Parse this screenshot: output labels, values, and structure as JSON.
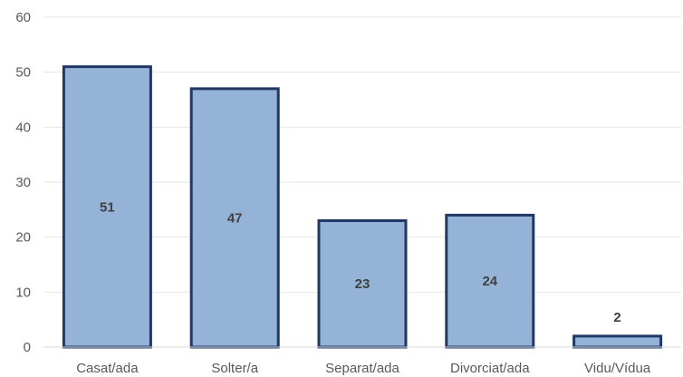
{
  "chart_data": {
    "type": "bar",
    "categories": [
      "Casat/ada",
      "Solter/a",
      "Separat/ada",
      "Divorciat/ada",
      "Vidu/Vídua"
    ],
    "values": [
      51,
      47,
      23,
      24,
      2
    ],
    "data_labels": [
      "51",
      "47",
      "23",
      "24",
      "2"
    ],
    "ylim": [
      0,
      60
    ],
    "yticks": [
      "0",
      "10",
      "20",
      "30",
      "40",
      "50",
      "60"
    ],
    "grid": true,
    "legend": "none",
    "colors": {
      "bar_fill": "#95b3d7",
      "bar_stroke": "#1f3864",
      "grid": "#e6e6e6"
    }
  }
}
